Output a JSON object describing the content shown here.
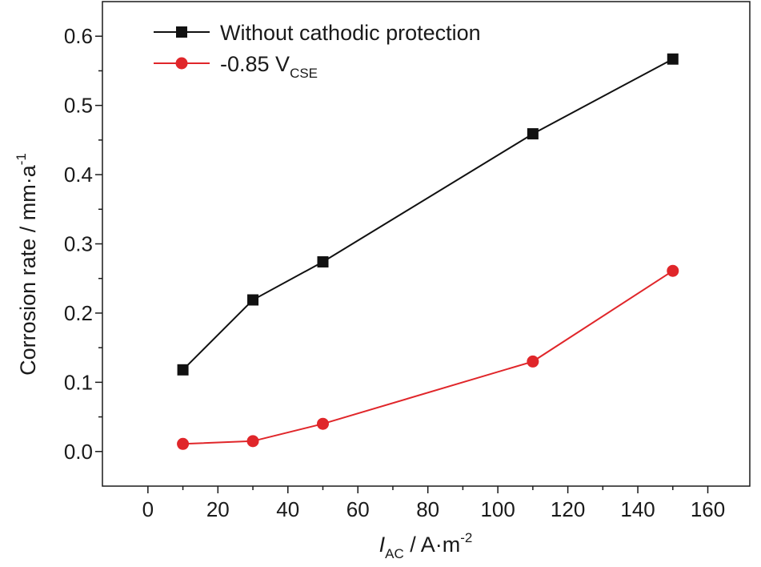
{
  "chart_data": {
    "type": "line",
    "xlabel": {
      "main": "I",
      "sub": "AC",
      "unit": " / A·m",
      "unit_sup": "-2"
    },
    "ylabel": {
      "main": "Corrosion rate / mm·a",
      "sup": "-1"
    },
    "xlim": [
      -13,
      172
    ],
    "ylim": [
      -0.05,
      0.65
    ],
    "xticks": [
      0,
      20,
      40,
      60,
      80,
      100,
      120,
      140,
      160
    ],
    "xtick_labels": [
      "0",
      "20",
      "40",
      "60",
      "80",
      "100",
      "120",
      "140",
      "160"
    ],
    "yticks": [
      0.0,
      0.1,
      0.2,
      0.3,
      0.4,
      0.5,
      0.6
    ],
    "ytick_labels": [
      "0.0",
      "0.1",
      "0.2",
      "0.3",
      "0.4",
      "0.5",
      "0.6"
    ],
    "x": [
      10,
      30,
      50,
      110,
      150
    ],
    "series": [
      {
        "name": "Without cathodic protection",
        "marker": "square",
        "color": "#111111",
        "values": [
          0.118,
          0.219,
          0.274,
          0.459,
          0.567
        ]
      },
      {
        "name": "-0.85 V",
        "name_sub": "CSE",
        "marker": "circle",
        "color": "#e0262a",
        "values": [
          0.011,
          0.015,
          0.04,
          0.13,
          0.261
        ]
      }
    ],
    "grid": false,
    "legend_position": "top-left"
  }
}
